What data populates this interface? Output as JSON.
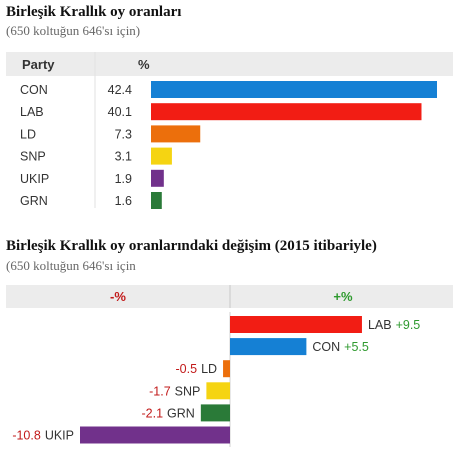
{
  "chart_data": [
    {
      "type": "bar",
      "title": "Birleşik Krallık oy oranları",
      "subtitle": "(650 koltuğun 646'sı için)",
      "column_headers": [
        "Party",
        "%"
      ],
      "categories": [
        "CON",
        "LAB",
        "LD",
        "SNP",
        "UKIP",
        "GRN"
      ],
      "values": [
        42.4,
        40.1,
        7.3,
        3.1,
        1.9,
        1.6
      ],
      "value_labels": [
        "42.4",
        "40.1",
        "7.3",
        "3.1",
        "1.9",
        "1.6"
      ],
      "colors": [
        "#1580d4",
        "#f21d14",
        "#ec6f0c",
        "#f5d412",
        "#71318b",
        "#2a7a38"
      ]
    },
    {
      "type": "bar",
      "title": "Birleşik Krallık oy oranlarındaki değişim (2015 itibariyle)",
      "subtitle": "(650 koltuğun 646'sı için",
      "column_headers": [
        "-%",
        "+%"
      ],
      "categories": [
        "LAB",
        "CON",
        "LD",
        "SNP",
        "GRN",
        "UKIP"
      ],
      "values": [
        9.5,
        5.5,
        -0.5,
        -1.7,
        -2.1,
        -10.8
      ],
      "value_labels": [
        "+9.5",
        "+5.5",
        "-0.5",
        "-1.7",
        "-2.1",
        "-10.8"
      ],
      "colors": [
        "#f21d14",
        "#1580d4",
        "#ec6f0c",
        "#f5d412",
        "#2a7a38",
        "#71318b"
      ],
      "label_colors": {
        "positive": "#2f9a2f",
        "negative": "#c21a1a"
      }
    }
  ]
}
